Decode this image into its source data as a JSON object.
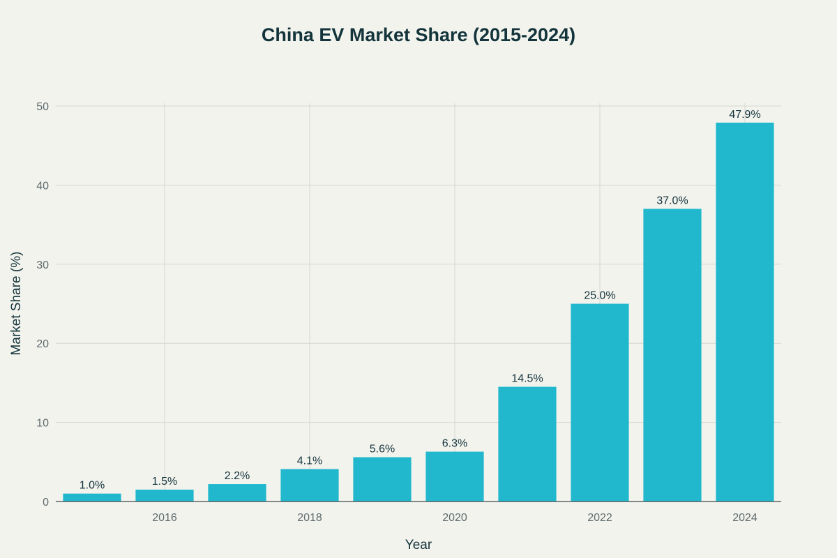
{
  "chart_data": {
    "type": "bar",
    "title": "China EV Market Share (2015-2024)",
    "xlabel": "Year",
    "ylabel": "Market Share (%)",
    "x": [
      2015,
      2016,
      2017,
      2018,
      2019,
      2020,
      2021,
      2022,
      2023,
      2024
    ],
    "values": [
      1.0,
      1.5,
      2.2,
      4.1,
      5.6,
      6.3,
      14.5,
      25.0,
      37.0,
      47.9
    ],
    "data_labels": [
      "1.0%",
      "1.5%",
      "2.2%",
      "4.1%",
      "5.6%",
      "6.3%",
      "14.5%",
      "25.0%",
      "37.0%",
      "47.9%"
    ],
    "x_ticks": [
      "2016",
      "2018",
      "2020",
      "2022",
      "2024"
    ],
    "y_ticks": [
      "0",
      "10",
      "20",
      "30",
      "40",
      "50"
    ],
    "ylim": [
      0,
      50
    ],
    "grid": true,
    "colors": {
      "bar": "#21b8cd",
      "text": "#13343b",
      "tick": "#5f6b6d",
      "grid": "#d7d7d2",
      "background": "#f3f3ee"
    }
  }
}
